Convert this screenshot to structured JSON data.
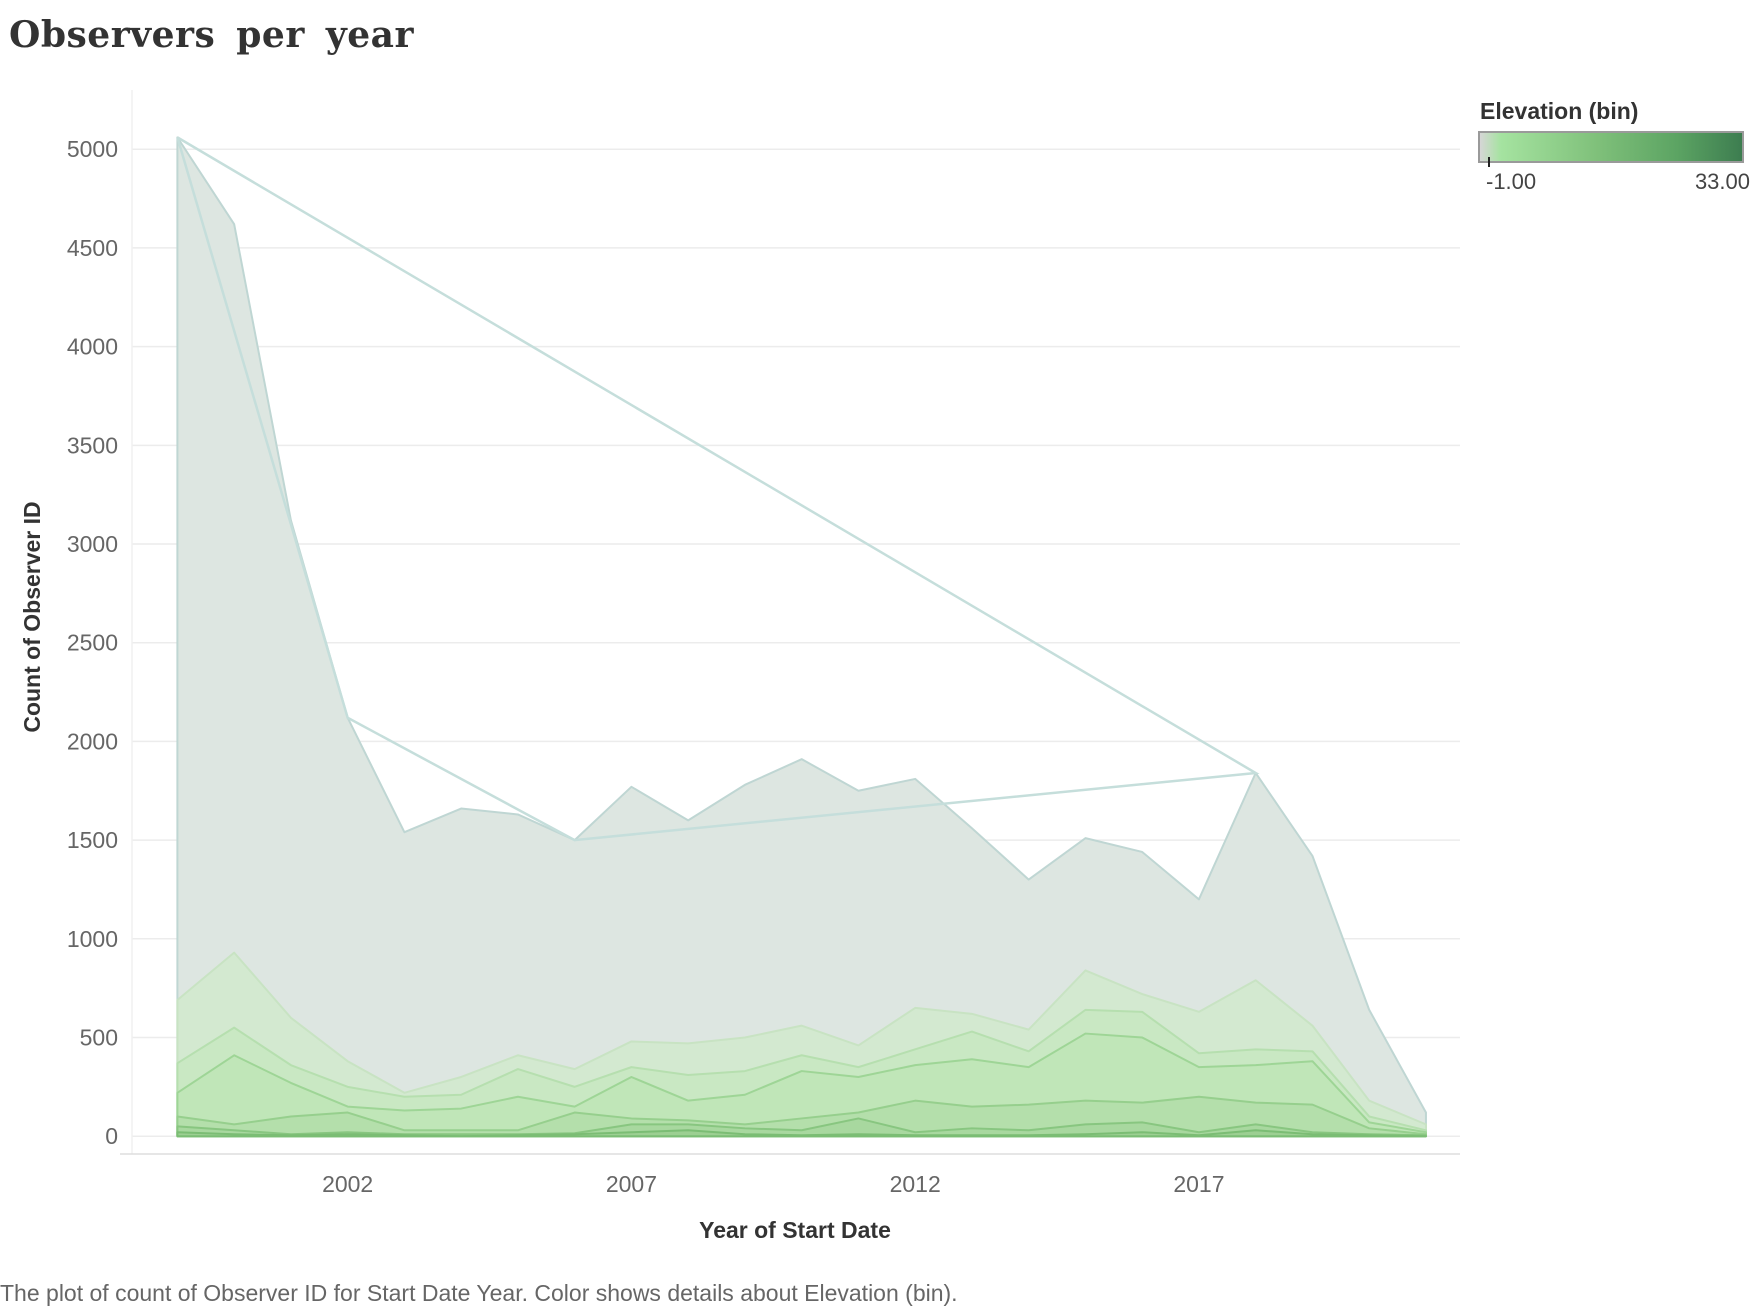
{
  "title": "Observers  per  year",
  "caption": "The plot of count of Observer ID for Start Date Year.  Color shows details about Elevation (bin).",
  "legend": {
    "title": "Elevation (bin)",
    "min_label": "-1.00",
    "max_label": "33.00",
    "colors": [
      "#d6d6d6",
      "#a5e3a0",
      "#7fc07a",
      "#3d7d50"
    ]
  },
  "chart_data": {
    "type": "area",
    "xlabel": "Year of Start Date",
    "ylabel": "Count of Observer ID",
    "x": [
      1999,
      2000,
      2001,
      2002,
      2003,
      2004,
      2005,
      2006,
      2007,
      2008,
      2009,
      2010,
      2011,
      2012,
      2013,
      2014,
      2015,
      2016,
      2017,
      2018,
      2019,
      2020,
      2021
    ],
    "xticks": [
      2002,
      2007,
      2012,
      2017
    ],
    "xlim": [
      1998.2,
      2021.6
    ],
    "yticks": [
      0,
      500,
      1000,
      1500,
      2000,
      2500,
      3000,
      3500,
      4000,
      4500,
      5000
    ],
    "ylim": [
      -80,
      5300
    ],
    "grid": true,
    "stacked": true,
    "layers": [
      {
        "bin": "-1",
        "color": "#dde6e1",
        "stroke": "#bfd6d3",
        "values": [
          5060,
          4620,
          3120,
          2120,
          1540,
          1660,
          1630,
          1500,
          1770,
          1600,
          1780,
          1910,
          1750,
          1810,
          1560,
          1300,
          1510,
          1440,
          1200,
          1840,
          1420,
          640,
          120
        ]
      },
      {
        "bin": "low-1",
        "color": "#d3e9d0",
        "stroke": "#c8e3c3",
        "values": [
          690,
          930,
          600,
          380,
          220,
          300,
          410,
          340,
          480,
          470,
          500,
          560,
          460,
          650,
          620,
          540,
          840,
          720,
          630,
          790,
          560,
          180,
          60
        ]
      },
      {
        "bin": "low-2",
        "color": "#c9e8c3",
        "stroke": "#b6dfaf",
        "values": [
          370,
          550,
          360,
          250,
          200,
          210,
          340,
          250,
          350,
          310,
          330,
          410,
          350,
          440,
          530,
          430,
          640,
          630,
          420,
          440,
          430,
          100,
          30
        ]
      },
      {
        "bin": "low-3",
        "color": "#c0e6b8",
        "stroke": "#9ed596",
        "values": [
          220,
          410,
          270,
          150,
          130,
          140,
          200,
          150,
          300,
          180,
          210,
          330,
          300,
          360,
          390,
          350,
          520,
          500,
          350,
          360,
          380,
          70,
          20
        ]
      },
      {
        "bin": "mid-1",
        "color": "#b4dfab",
        "stroke": "#96cf8d",
        "values": [
          100,
          60,
          100,
          120,
          30,
          30,
          30,
          120,
          90,
          80,
          60,
          90,
          120,
          180,
          150,
          160,
          180,
          170,
          200,
          170,
          160,
          40,
          10
        ]
      },
      {
        "bin": "mid-2",
        "color": "#a8d89f",
        "stroke": "#88c680",
        "values": [
          50,
          30,
          10,
          20,
          10,
          10,
          10,
          15,
          60,
          60,
          40,
          30,
          90,
          20,
          40,
          30,
          60,
          70,
          20,
          60,
          20,
          10,
          5
        ]
      },
      {
        "bin": "high-1",
        "color": "#9ccf92",
        "stroke": "#7bbd74",
        "values": [
          20,
          10,
          5,
          10,
          5,
          0,
          5,
          10,
          20,
          30,
          10,
          5,
          10,
          5,
          5,
          5,
          10,
          20,
          5,
          30,
          10,
          5,
          0
        ]
      }
    ],
    "outline": {
      "color": "#c5dedb",
      "points": [
        [
          1999,
          5060
        ],
        [
          2002,
          2120
        ],
        [
          2006,
          1500
        ],
        [
          2018,
          1840
        ],
        [
          1999,
          5060
        ]
      ]
    }
  }
}
